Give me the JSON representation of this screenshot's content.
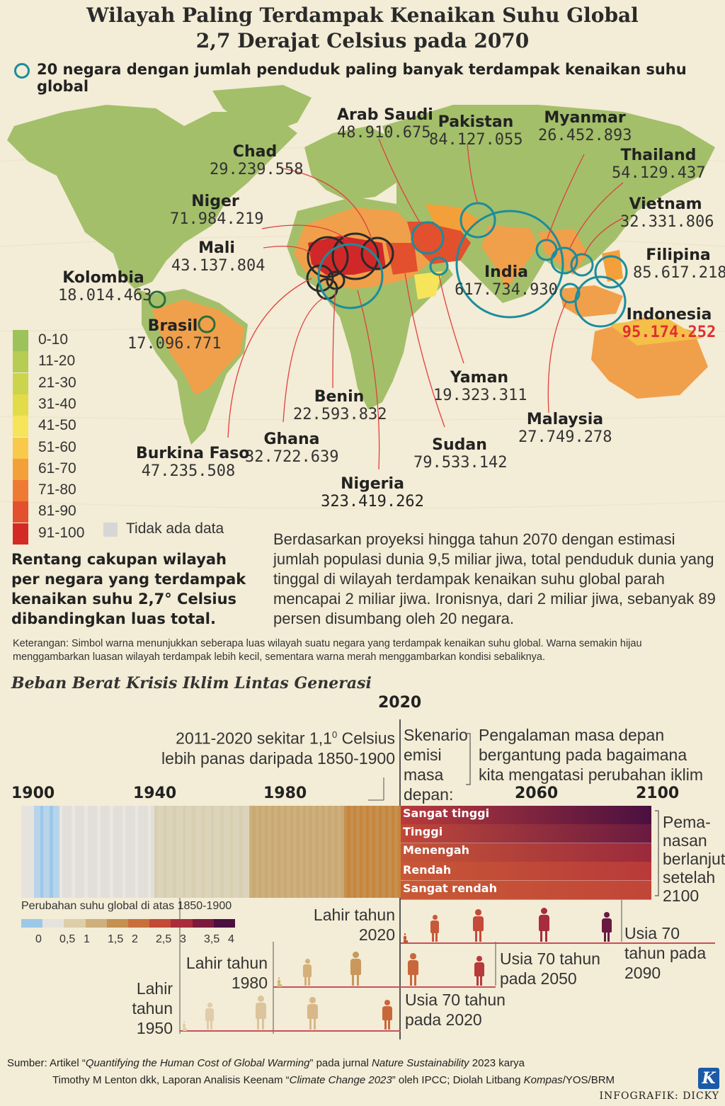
{
  "title": {
    "line1": "Wilayah Paling Terdampak Kenaikan Suhu Global",
    "line2": "2,7 Derajat Celsius pada 2070"
  },
  "subtitle": "20 negara dengan jumlah penduduk paling banyak terdampak kenaikan suhu global",
  "countries": {
    "arab_saudi": {
      "name": "Arab Saudi",
      "pop": "48.910.675"
    },
    "pakistan": {
      "name": "Pakistan",
      "pop": "84.127.055"
    },
    "myanmar": {
      "name": "Myanmar",
      "pop": "26.452.893"
    },
    "chad": {
      "name": "Chad",
      "pop": "29.239.558"
    },
    "thailand": {
      "name": "Thailand",
      "pop": "54.129.437"
    },
    "niger": {
      "name": "Niger",
      "pop": "71.984.219"
    },
    "vietnam": {
      "name": "Vietnam",
      "pop": "32.331.806"
    },
    "mali": {
      "name": "Mali",
      "pop": "43.137.804"
    },
    "filipina": {
      "name": "Filipina",
      "pop": "85.617.218"
    },
    "kolombia": {
      "name": "Kolombia",
      "pop": "18.014.463"
    },
    "india": {
      "name": "India",
      "pop": "617.734.930"
    },
    "indonesia": {
      "name": "Indonesia",
      "pop": "95.174.252"
    },
    "brasil": {
      "name": "Brasil",
      "pop": "17.096.771"
    },
    "yaman": {
      "name": "Yaman",
      "pop": "19.323.311"
    },
    "benin": {
      "name": "Benin",
      "pop": "22.593.832"
    },
    "malaysia": {
      "name": "Malaysia",
      "pop": "27.749.278"
    },
    "ghana": {
      "name": "Ghana",
      "pop": "32.722.639"
    },
    "sudan": {
      "name": "Sudan",
      "pop": "79.533.142"
    },
    "burkina_faso": {
      "name": "Burkina Faso",
      "pop": "47.235.508"
    },
    "nigeria": {
      "name": "Nigeria",
      "pop": "323.419.262"
    }
  },
  "legend": {
    "bins": [
      "0-10",
      "11-20",
      "21-30",
      "31-40",
      "41-50",
      "51-60",
      "61-70",
      "71-80",
      "81-90",
      "91-100"
    ],
    "colors": [
      "#9ec25a",
      "#b6cc52",
      "#cbd44c",
      "#e2dc4a",
      "#f6e45a",
      "#f8c94a",
      "#f4a03a",
      "#ee7a34",
      "#e2502e",
      "#d42a26"
    ],
    "no_data": "Tidak ada data",
    "no_data_color": "#d6d6d6"
  },
  "colors": {
    "ring": "#1c8c9c",
    "arrow": "#e04040",
    "indonesia_highlight": "#e03030"
  },
  "notes": {
    "bold": "Rentang cakupan wilayah per negara yang terdampak kenaikan suhu 2,7° Celsius dibandingkan luas total.",
    "paragraph": "Berdasarkan proyeksi hingga tahun 2070 dengan estimasi jumlah populasi dunia 9,5 miliar jiwa, total penduduk dunia yang tinggal di wilayah terdampak kenaikan suhu global parah mencapai 2 miliar jiwa. Ironisnya, dari 2 miliar jiwa, sebanyak 89 persen disumbang oleh 20 negara.",
    "keterangan": "Keterangan: Simbol warna menunjukkan seberapa luas wilayah suatu negara yang terdampak kenaikan suhu global. Warna semakin hijau menggambarkan luasan wilayah terdampak lebih kecil, sementara warna merah menggambarkan kondisi sebaliknya."
  },
  "timeline": {
    "section_title": "Beban Berat Krisis Iklim Lintas Generasi",
    "year_2020": "2020",
    "note_2011": "2011-2020 sekitar 1,1",
    "note_2011_sup": "0",
    "note_2011_unit": "Celsius",
    "note_2011_line2": "lebih panas daripada 1850-1900",
    "skenario": "Skenario emisi masa depan:",
    "pengalaman": "Pengalaman masa depan bergantung pada bagaimana kita mengatasi perubahan iklim",
    "years": [
      "1900",
      "1940",
      "1980",
      "2060",
      "2100"
    ],
    "scenarios": [
      "Sangat tinggi",
      "Tinggi",
      "Menengah",
      "Rendah",
      "Sangat rendah"
    ],
    "pemanasan": "Pema- nasan berlanjut setelah 2100",
    "scale_label": "Perubahan suhu global di atas 1850-1900",
    "scale_ticks": [
      "0",
      "0,5",
      "1",
      "1,5",
      "2",
      "2,5",
      "3",
      "3,5",
      "4"
    ],
    "scale_colors": [
      "#9cc8e8",
      "#e6e3de",
      "#dccfa8",
      "#cdb07c",
      "#c59050",
      "#c86f3c",
      "#c24a36",
      "#a82c3c",
      "#7c1a3e",
      "#4a1040"
    ],
    "born_2020": "Lahir tahun 2020",
    "born_1980": "Lahir tahun 1980",
    "born_1950": "Lahir tahun 1950",
    "age70_2090": "Usia 70 tahun pada 2090",
    "age70_2050": "Usia 70 tahun pada 2050",
    "age70_2020": "Usia 70 tahun pada 2020"
  },
  "source": {
    "line1_a": "Sumber: Artikel “",
    "line1_b": "Quantifying the Human Cost of Global Warming",
    "line1_c": "” pada jurnal ",
    "line1_d": "Nature Sustainability",
    "line1_e": " 2023 karya",
    "line2_a": "Timothy M Lenton dkk, Laporan Analisis Keenam “",
    "line2_b": "Climate Change 2023",
    "line2_c": "” oleh IPCC; Diolah Litbang ",
    "line2_d": "Kompas",
    "line2_e": "/YOS/BRM"
  },
  "logo": "K",
  "credit": "INFOGRAFIK: DICKY"
}
